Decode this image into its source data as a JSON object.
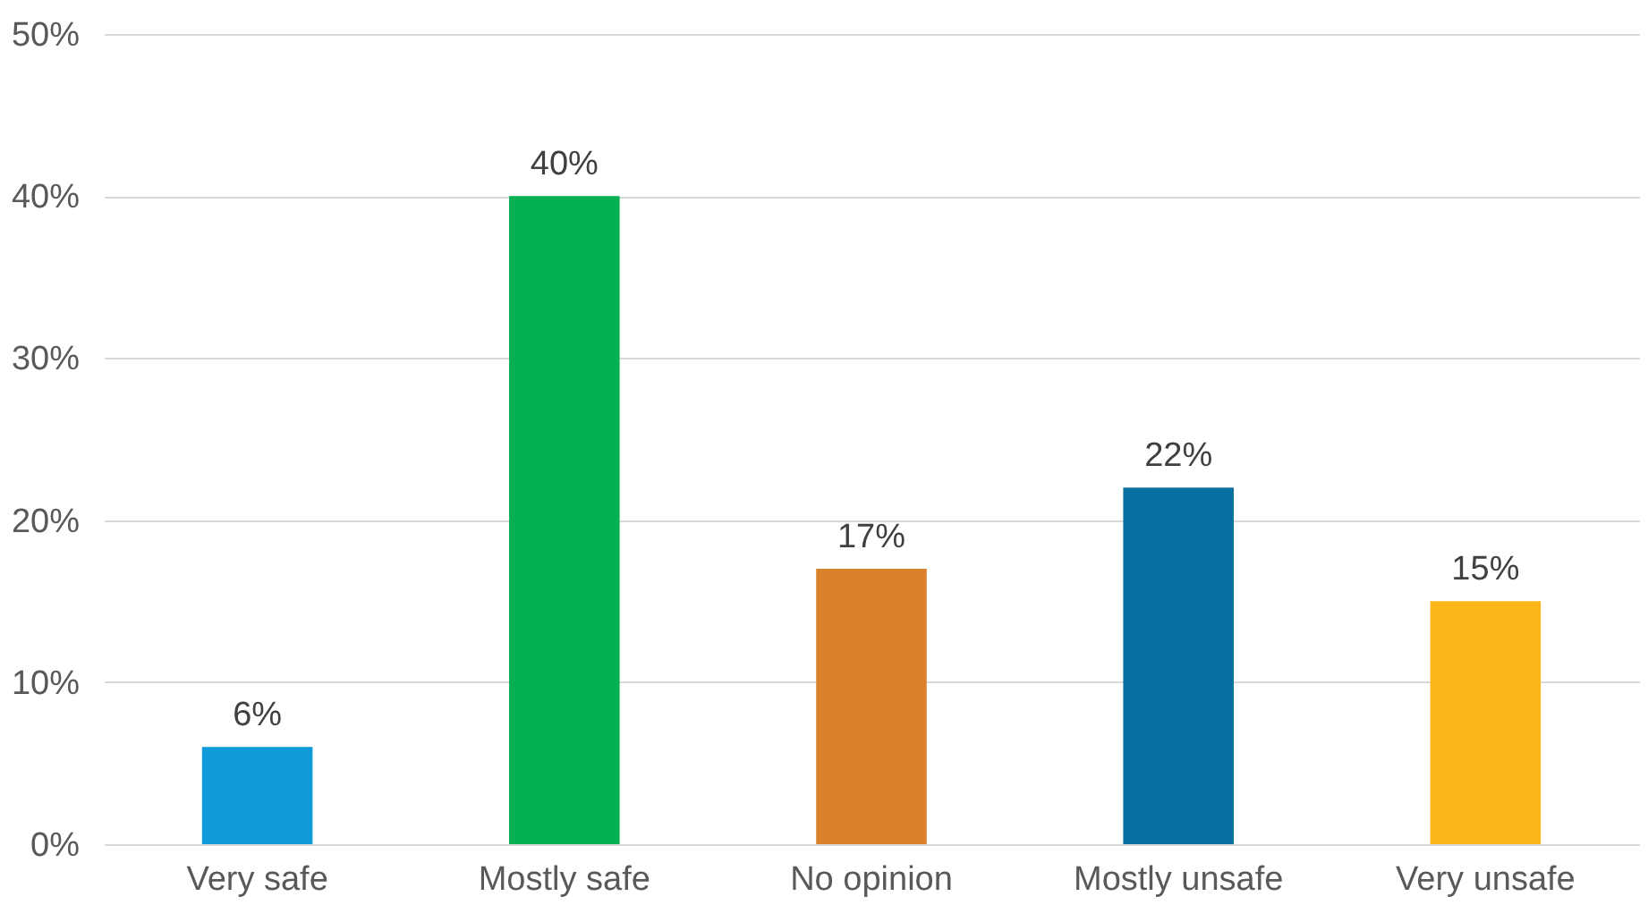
{
  "chart_data": {
    "type": "bar",
    "categories": [
      "Very safe",
      "Mostly safe",
      "No opinion",
      "Mostly unsafe",
      "Very unsafe"
    ],
    "values": [
      6,
      40,
      17,
      22,
      15
    ],
    "colors": [
      "#0f9ad8",
      "#05b050",
      "#d9822b",
      "#0870a0",
      "#fbb71a"
    ],
    "value_labels": [
      "6%",
      "40%",
      "17%",
      "22%",
      "15%"
    ],
    "ylim": [
      0,
      50
    ],
    "yticks": [
      {
        "value": 0,
        "label": "0%"
      },
      {
        "value": 10,
        "label": "10%"
      },
      {
        "value": 20,
        "label": "20%"
      },
      {
        "value": 30,
        "label": "30%"
      },
      {
        "value": 40,
        "label": "40%"
      },
      {
        "value": 50,
        "label": "50%"
      }
    ],
    "grid": "y",
    "legend": false
  }
}
